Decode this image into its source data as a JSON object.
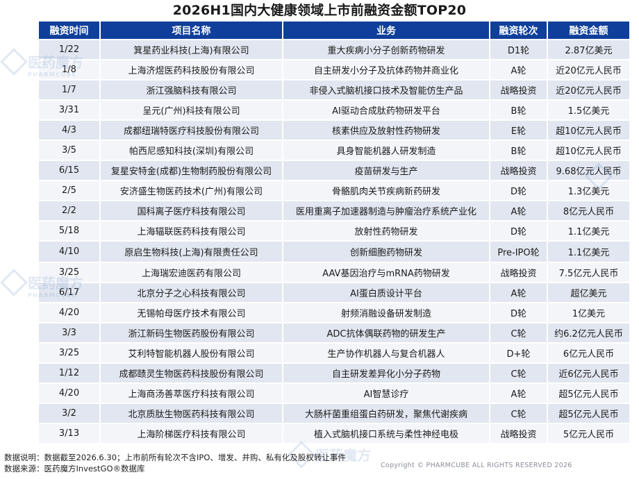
{
  "title": "2026H1国内大健康领域上市前融资金额TOP20",
  "headers": [
    "融资时间",
    "项目名称",
    "业务",
    "融资轮次",
    "融资金额"
  ],
  "rows": [
    [
      "1/22",
      "箕星药业科技(上海)有限公司",
      "重大疾病小分子创新药物研发",
      "D1轮",
      "2.87亿美元"
    ],
    [
      "1/8",
      "上海济煜医药科技股份有限公司",
      "自主研发小分子及抗体药物并商业化",
      "A轮",
      "近20亿元人民币"
    ],
    [
      "1/7",
      "浙江强脑科技有限公司",
      "非侵入式脑机接口技术及智能仿生产品",
      "战略投资",
      "近20亿元人民币"
    ],
    [
      "3/31",
      "呈元(广州)科技有限公司",
      "AI驱动合成肽药物研发平台",
      "B轮",
      "1.5亿美元"
    ],
    [
      "4/3",
      "成都纽瑞特医疗科技股份有限公司",
      "核素供应及放射性药物研发",
      "E轮",
      "超10亿元人民币"
    ],
    [
      "3/5",
      "帕西尼感知科技(深圳)有限公司",
      "具身智能机器人研发制造",
      "B轮",
      "超10亿元人民币"
    ],
    [
      "6/15",
      "复星安特金(成都)生物制药股份有限公司",
      "疫苗研发与生产",
      "战略投资",
      "9.68亿元人民币"
    ],
    [
      "2/5",
      "安济盛生物医药技术(广州)有限公司",
      "骨骼肌肉关节疾病新药研发",
      "D轮",
      "1.3亿美元"
    ],
    [
      "2/2",
      "国科离子医疗科技有限公司",
      "医用重离子加速器制造与肿瘤治疗系统产业化",
      "A轮",
      "8亿元人民币"
    ],
    [
      "5/18",
      "上海辐联医药科技有限公司",
      "放射性药物研发",
      "D轮",
      "1.1亿美元"
    ],
    [
      "4/10",
      "原启生物科技(上海)有限责任公司",
      "创新细胞药物研发",
      "Pre-IPO轮",
      "1.1亿美元"
    ],
    [
      "3/25",
      "上海瑞宏迪医药有限公司",
      "AAV基因治疗与mRNA药物研发",
      "战略投资",
      "7.5亿元人民币"
    ],
    [
      "6/17",
      "北京分子之心科技有限公司",
      "AI蛋白质设计平台",
      "A轮",
      "超亿美元"
    ],
    [
      "4/20",
      "无锡帕母医疗技术有限公司",
      "射频消融设备研发制造",
      "D轮",
      "1亿美元"
    ],
    [
      "3/3",
      "浙江新码生物医药股份有限公司",
      "ADC抗体偶联药物的研发生产",
      "C轮",
      "约6.2亿元人民币"
    ],
    [
      "3/25",
      "艾利特智能机器人股份有限公司",
      "生产协作机器人与复合机器人",
      "D+轮",
      "6亿元人民币"
    ],
    [
      "1/12",
      "成都赜灵生物医药科技股份有限公司",
      "自主研发差异化小分子药物",
      "C轮",
      "近6亿元人民币"
    ],
    [
      "4/20",
      "上海商汤善萃医疗科技有限公司",
      "AI智慧诊疗",
      "A轮",
      "超5亿元人民币"
    ],
    [
      "3/2",
      "北京质肽生物医药科技有限公司",
      "大肠杆菌重组蛋白药研发，聚焦代谢疾病",
      "C轮",
      "超5亿元人民币"
    ],
    [
      "3/13",
      "上海阶梯医疗科技有限公司",
      "植入式脑机接口系统与柔性神经电极",
      "战略投资",
      "5亿元人民币"
    ]
  ],
  "notes": {
    "line1": "数据说明：数据截至2026.6.30；上市前所有轮次不含IPO、增发、并购、私有化及股权转让事件",
    "line2": "数据来源：医药魔方InvestGO®数据库"
  },
  "copyright": "Copyright © PHARMCUBE ALL RIGHTS RESERVED 2026",
  "watermark": {
    "cn": "医药魔方",
    "en": "PHARMCUBE"
  },
  "colors": {
    "header_bg": "#0f3f9a",
    "row_odd": "#e1e6f0",
    "row_even": "#f3f5f9"
  }
}
